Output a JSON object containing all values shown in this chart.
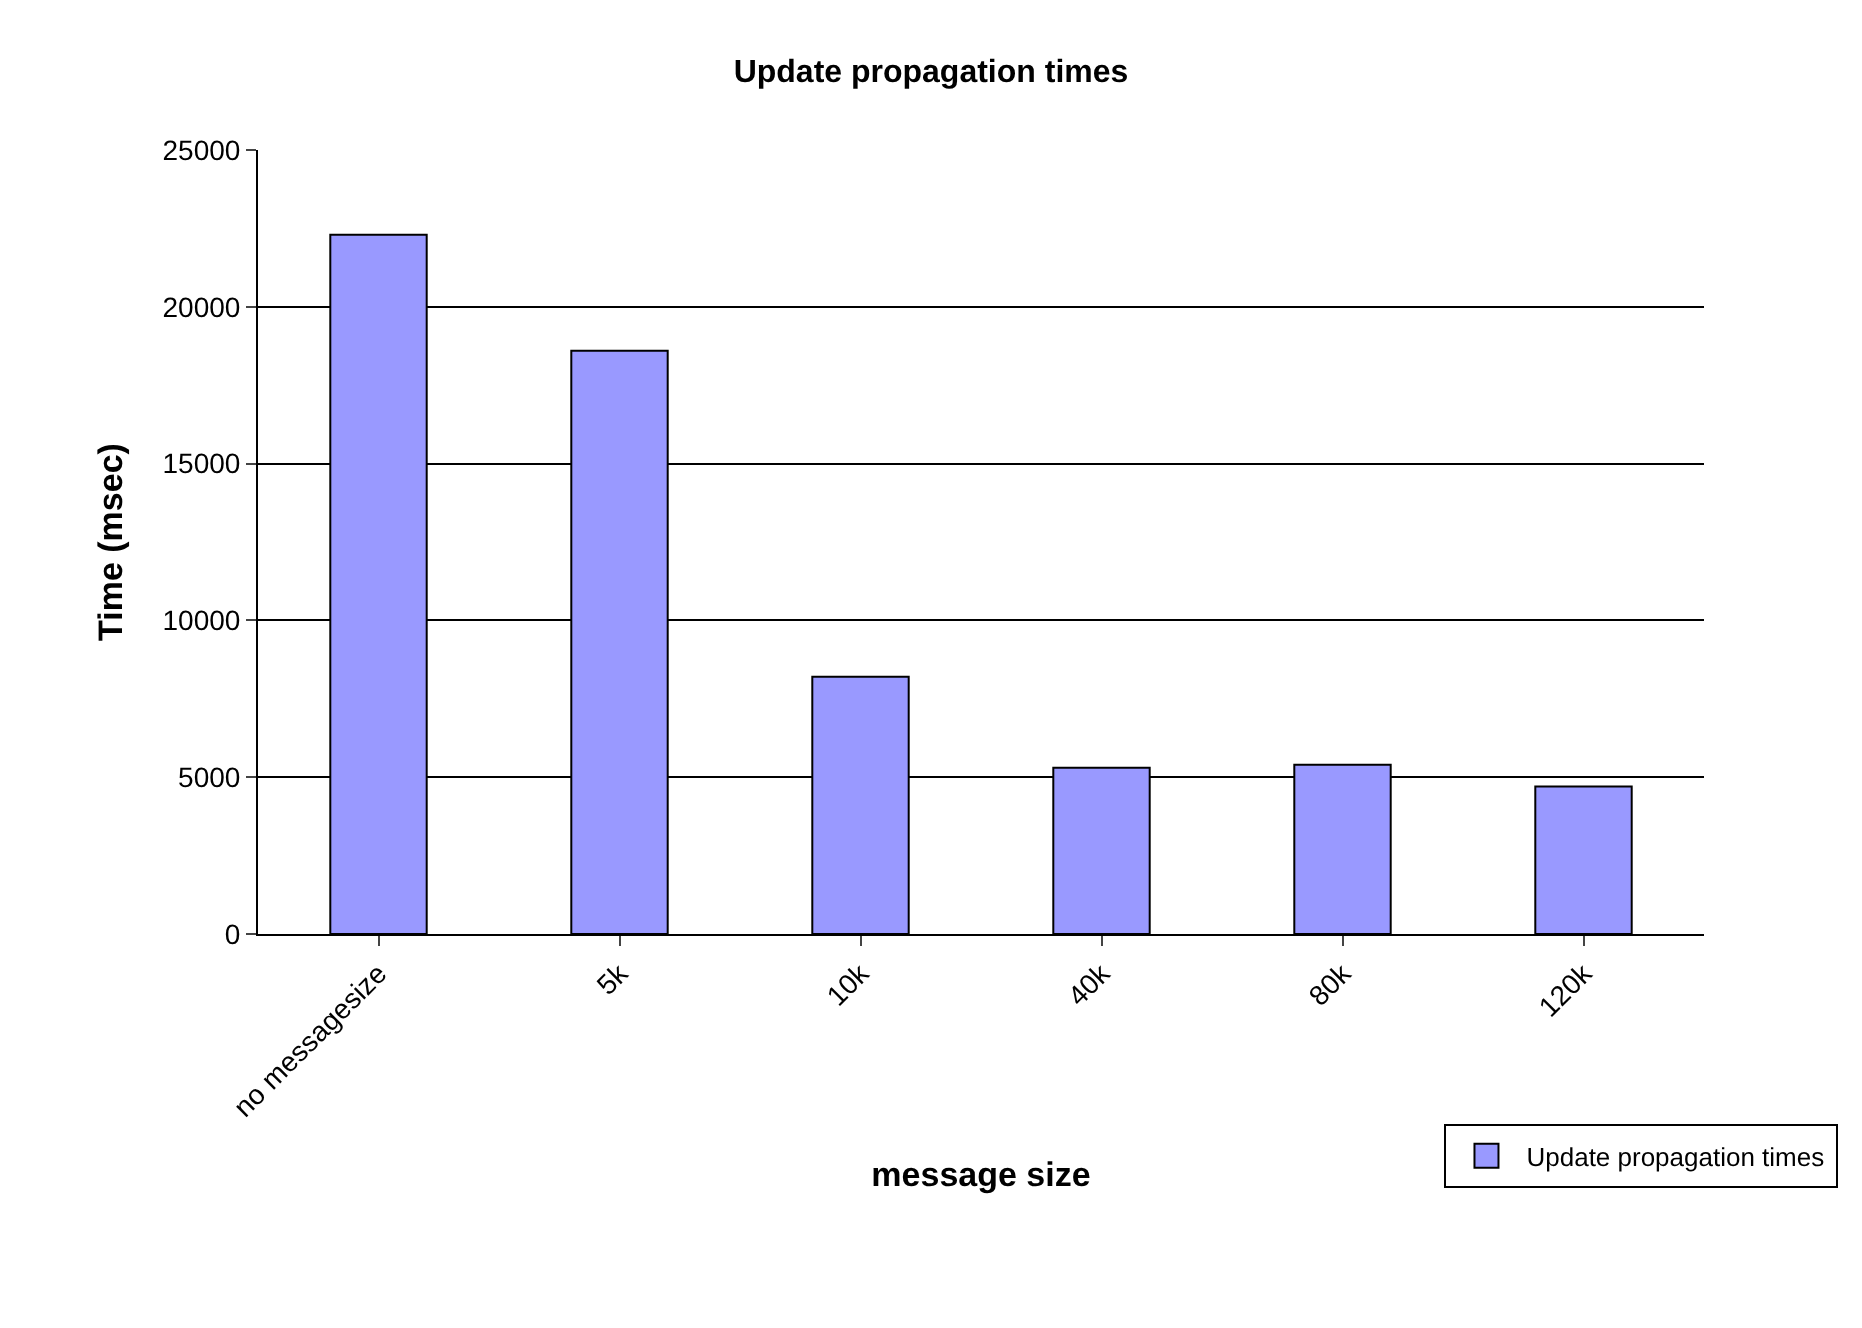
{
  "chart_data": {
    "type": "bar",
    "title": "Update propagation times",
    "xlabel": "message size",
    "ylabel": "Time (msec)",
    "categories": [
      "no messagesize",
      "5k",
      "10k",
      "40k",
      "80k",
      "120k"
    ],
    "series": [
      {
        "name": "Update propagation times",
        "color": "#9999ff",
        "values": [
          22300,
          18600,
          8200,
          5300,
          5400,
          4700
        ]
      }
    ],
    "ylim": [
      0,
      25000
    ],
    "yticks": [
      0,
      5000,
      10000,
      15000,
      20000,
      25000
    ],
    "grid": "y",
    "legend": "bottom right"
  }
}
